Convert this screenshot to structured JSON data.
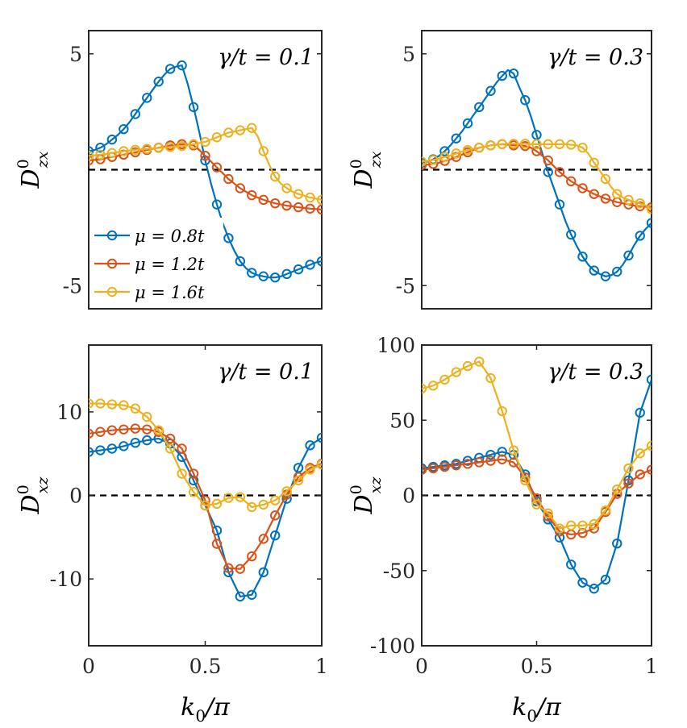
{
  "colors": {
    "mu_08": "#0072BD",
    "mu_12": "#D95319",
    "mu_16": "#EDB120"
  },
  "legend": {
    "entries": [
      "μ = 0.8t",
      "μ = 1.2t",
      "μ = 1.6t"
    ]
  },
  "chart_data": [
    {
      "type": "line",
      "panel": "top-left",
      "annotation": "γ/t = 0.1",
      "ylabel_main": "D",
      "ylabel_sup": "0",
      "ylabel_sub": "zx",
      "xlabel": "",
      "xlim": [
        0,
        1
      ],
      "ylim": [
        -6,
        6
      ],
      "xticks": [],
      "xtick_labels": [],
      "yticks": [
        5,
        -5
      ],
      "ytick_labels": [
        "5",
        "-5"
      ],
      "zero_line": true,
      "legend": "left",
      "x": [
        0,
        0.025,
        0.05,
        0.075,
        0.1,
        0.125,
        0.15,
        0.175,
        0.2,
        0.225,
        0.25,
        0.275,
        0.3,
        0.325,
        0.35,
        0.375,
        0.4,
        0.425,
        0.45,
        0.475,
        0.5,
        0.525,
        0.55,
        0.575,
        0.6,
        0.625,
        0.65,
        0.675,
        0.7,
        0.725,
        0.75,
        0.775,
        0.8,
        0.825,
        0.85,
        0.875,
        0.9,
        0.925,
        0.95,
        0.975,
        1
      ],
      "series": [
        {
          "name": "μ = 0.8t",
          "color": "#0072BD",
          "marker_every": 2,
          "values": [
            0.8,
            0.85,
            0.95,
            1.1,
            1.3,
            1.5,
            1.75,
            2.05,
            2.4,
            2.75,
            3.1,
            3.45,
            3.8,
            4.1,
            4.35,
            4.45,
            4.5,
            3.7,
            2.7,
            1.6,
            0.4,
            -0.6,
            -1.5,
            -2.3,
            -2.95,
            -3.5,
            -3.95,
            -4.25,
            -4.45,
            -4.55,
            -4.6,
            -4.65,
            -4.65,
            -4.6,
            -4.5,
            -4.4,
            -4.3,
            -4.2,
            -4.1,
            -4.0,
            -3.95
          ]
        },
        {
          "name": "μ = 1.2t",
          "color": "#D95319",
          "marker_every": 2,
          "values": [
            0.4,
            0.42,
            0.45,
            0.5,
            0.55,
            0.6,
            0.65,
            0.7,
            0.75,
            0.8,
            0.85,
            0.9,
            0.95,
            1.0,
            1.05,
            1.08,
            1.1,
            1.08,
            1.05,
            0.85,
            0.6,
            0.35,
            0.1,
            -0.15,
            -0.4,
            -0.6,
            -0.8,
            -0.95,
            -1.1,
            -1.2,
            -1.3,
            -1.38,
            -1.45,
            -1.5,
            -1.55,
            -1.58,
            -1.62,
            -1.65,
            -1.68,
            -1.7,
            -1.72
          ]
        },
        {
          "name": "μ = 1.6t",
          "color": "#EDB120",
          "marker_every": 2,
          "values": [
            0.6,
            0.62,
            0.65,
            0.68,
            0.72,
            0.76,
            0.8,
            0.83,
            0.86,
            0.88,
            0.9,
            0.92,
            0.94,
            0.96,
            0.98,
            1.0,
            1.02,
            1.05,
            1.1,
            1.15,
            1.2,
            1.3,
            1.4,
            1.5,
            1.6,
            1.65,
            1.7,
            1.75,
            1.8,
            1.45,
            0.8,
            0.2,
            -0.3,
            -0.6,
            -0.8,
            -0.95,
            -1.05,
            -1.12,
            -1.2,
            -1.25,
            -1.3
          ]
        }
      ]
    },
    {
      "type": "line",
      "panel": "top-right",
      "annotation": "γ/t = 0.3",
      "ylabel_main": "D",
      "ylabel_sup": "0",
      "ylabel_sub": "zx",
      "xlabel": "",
      "xlim": [
        0,
        1
      ],
      "ylim": [
        -6,
        6
      ],
      "xticks": [],
      "xtick_labels": [],
      "yticks": [
        5,
        -5
      ],
      "ytick_labels": [
        "5",
        "-5"
      ],
      "zero_line": true,
      "legend": "",
      "x": [
        0,
        0.025,
        0.05,
        0.075,
        0.1,
        0.125,
        0.15,
        0.175,
        0.2,
        0.225,
        0.25,
        0.275,
        0.3,
        0.325,
        0.35,
        0.375,
        0.4,
        0.425,
        0.45,
        0.475,
        0.5,
        0.525,
        0.55,
        0.575,
        0.6,
        0.625,
        0.65,
        0.675,
        0.7,
        0.725,
        0.75,
        0.775,
        0.8,
        0.825,
        0.85,
        0.875,
        0.9,
        0.925,
        0.95,
        0.975,
        1
      ],
      "series": [
        {
          "name": "μ = 0.8t",
          "color": "#0072BD",
          "marker_every": 2,
          "values": [
            0.3,
            0.35,
            0.45,
            0.6,
            0.8,
            1.05,
            1.35,
            1.65,
            2.0,
            2.35,
            2.7,
            3.05,
            3.4,
            3.75,
            4.05,
            4.3,
            4.15,
            3.55,
            3.0,
            2.3,
            1.5,
            0.7,
            -0.1,
            -0.8,
            -1.5,
            -2.2,
            -2.8,
            -3.3,
            -3.75,
            -4.1,
            -4.35,
            -4.5,
            -4.6,
            -4.55,
            -4.4,
            -4.1,
            -3.7,
            -3.25,
            -2.85,
            -2.55,
            -2.3
          ]
        },
        {
          "name": "μ = 1.2t",
          "color": "#D95319",
          "marker_every": 2,
          "values": [
            0.2,
            0.22,
            0.25,
            0.3,
            0.38,
            0.45,
            0.55,
            0.65,
            0.75,
            0.85,
            0.95,
            1.0,
            1.05,
            1.08,
            1.1,
            1.08,
            1.05,
            1.05,
            1.02,
            0.95,
            0.8,
            0.6,
            0.4,
            0.15,
            -0.1,
            -0.3,
            -0.5,
            -0.65,
            -0.8,
            -0.92,
            -1.05,
            -1.15,
            -1.25,
            -1.32,
            -1.4,
            -1.45,
            -1.5,
            -1.55,
            -1.58,
            -1.6,
            -1.62
          ]
        },
        {
          "name": "μ = 1.6t",
          "color": "#EDB120",
          "marker_every": 2,
          "values": [
            0.35,
            0.38,
            0.42,
            0.48,
            0.55,
            0.62,
            0.7,
            0.78,
            0.85,
            0.9,
            0.95,
            1.0,
            1.05,
            1.08,
            1.1,
            1.12,
            1.12,
            1.12,
            1.12,
            1.1,
            1.1,
            1.1,
            1.1,
            1.1,
            1.1,
            1.1,
            1.08,
            1.05,
            0.95,
            0.7,
            0.3,
            -0.05,
            -0.4,
            -0.75,
            -1.05,
            -1.2,
            -1.3,
            -1.38,
            -1.45,
            -1.55,
            -1.7
          ]
        }
      ]
    },
    {
      "type": "line",
      "panel": "bottom-left",
      "annotation": "γ/t = 0.1",
      "ylabel_main": "D",
      "ylabel_sup": "0",
      "ylabel_sub": "xz",
      "xlabel_main": "k",
      "xlabel_sub": "0",
      "xlabel_tail": "/π",
      "xlim": [
        0,
        1
      ],
      "ylim": [
        -18,
        18
      ],
      "xticks": [
        0,
        0.5,
        1
      ],
      "xtick_labels": [
        "0",
        "0.5",
        "1"
      ],
      "yticks": [
        10,
        0,
        -10
      ],
      "ytick_labels": [
        "10",
        "0",
        "-10"
      ],
      "zero_line": true,
      "legend": "",
      "x": [
        0,
        0.05,
        0.1,
        0.15,
        0.2,
        0.25,
        0.3,
        0.35,
        0.4,
        0.45,
        0.5,
        0.55,
        0.6,
        0.65,
        0.7,
        0.75,
        0.8,
        0.85,
        0.9,
        0.95,
        1
      ],
      "series": [
        {
          "name": "μ = 0.8t",
          "color": "#0072BD",
          "marker_every": 1,
          "values": [
            5.2,
            5.4,
            5.6,
            5.9,
            6.3,
            6.6,
            6.8,
            6.2,
            4.6,
            1.8,
            -1.2,
            -4.2,
            -9.2,
            -12.1,
            -11.9,
            -9.2,
            -4.8,
            -0.4,
            3.3,
            6.0,
            6.9
          ]
        },
        {
          "name": "μ = 1.2t",
          "color": "#D95319",
          "marker_every": 1,
          "values": [
            7.4,
            7.6,
            7.8,
            7.9,
            8.0,
            7.9,
            7.6,
            6.8,
            5.6,
            2.6,
            -0.6,
            -5.8,
            -8.7,
            -8.8,
            -7.3,
            -5.2,
            -2.4,
            0.1,
            2.2,
            3.3,
            3.8
          ]
        },
        {
          "name": "μ = 1.6t",
          "color": "#EDB120",
          "marker_every": 1,
          "values": [
            11.0,
            11.0,
            10.9,
            10.8,
            10.4,
            9.4,
            7.8,
            5.6,
            2.6,
            0.4,
            -1.2,
            -1.0,
            -0.3,
            -0.2,
            -1.4,
            -1.1,
            -0.6,
            0.5,
            1.8,
            3.1,
            3.7
          ]
        }
      ]
    },
    {
      "type": "line",
      "panel": "bottom-right",
      "annotation": "γ/t = 0.3",
      "ylabel_main": "D",
      "ylabel_sup": "0",
      "ylabel_sub": "xz",
      "xlabel_main": "k",
      "xlabel_sub": "0",
      "xlabel_tail": "/π",
      "xlim": [
        0,
        1
      ],
      "ylim": [
        -100,
        100
      ],
      "xticks": [
        0,
        0.5,
        1
      ],
      "xtick_labels": [
        "0",
        "0.5",
        "1"
      ],
      "yticks": [
        100,
        50,
        0,
        -50,
        -100
      ],
      "ytick_labels": [
        "100",
        "50",
        "0",
        "-50",
        "-100"
      ],
      "zero_line": true,
      "legend": "",
      "x": [
        0,
        0.05,
        0.1,
        0.15,
        0.2,
        0.25,
        0.3,
        0.35,
        0.4,
        0.45,
        0.5,
        0.55,
        0.6,
        0.65,
        0.7,
        0.75,
        0.8,
        0.85,
        0.9,
        0.95,
        1
      ],
      "series": [
        {
          "name": "μ = 0.8t",
          "color": "#0072BD",
          "marker_every": 1,
          "values": [
            18,
            19,
            20,
            21,
            23,
            25,
            27,
            29,
            27,
            14,
            -4,
            -16,
            -28,
            -46,
            -58,
            -62,
            -56,
            -32,
            10,
            55,
            77
          ]
        },
        {
          "name": "μ = 1.2t",
          "color": "#D95319",
          "marker_every": 1,
          "values": [
            17,
            18,
            19,
            20,
            21,
            22,
            23,
            24,
            22,
            12,
            -2,
            -14,
            -24,
            -26,
            -25,
            -22,
            -11,
            1,
            8,
            14,
            17
          ]
        },
        {
          "name": "μ = 1.6t",
          "color": "#EDB120",
          "marker_every": 1,
          "values": [
            71,
            73,
            77,
            82,
            86,
            89,
            78,
            56,
            30,
            10,
            -6,
            -12,
            -22,
            -20,
            -20,
            -19,
            -10,
            4,
            18,
            28,
            33
          ]
        }
      ]
    }
  ]
}
